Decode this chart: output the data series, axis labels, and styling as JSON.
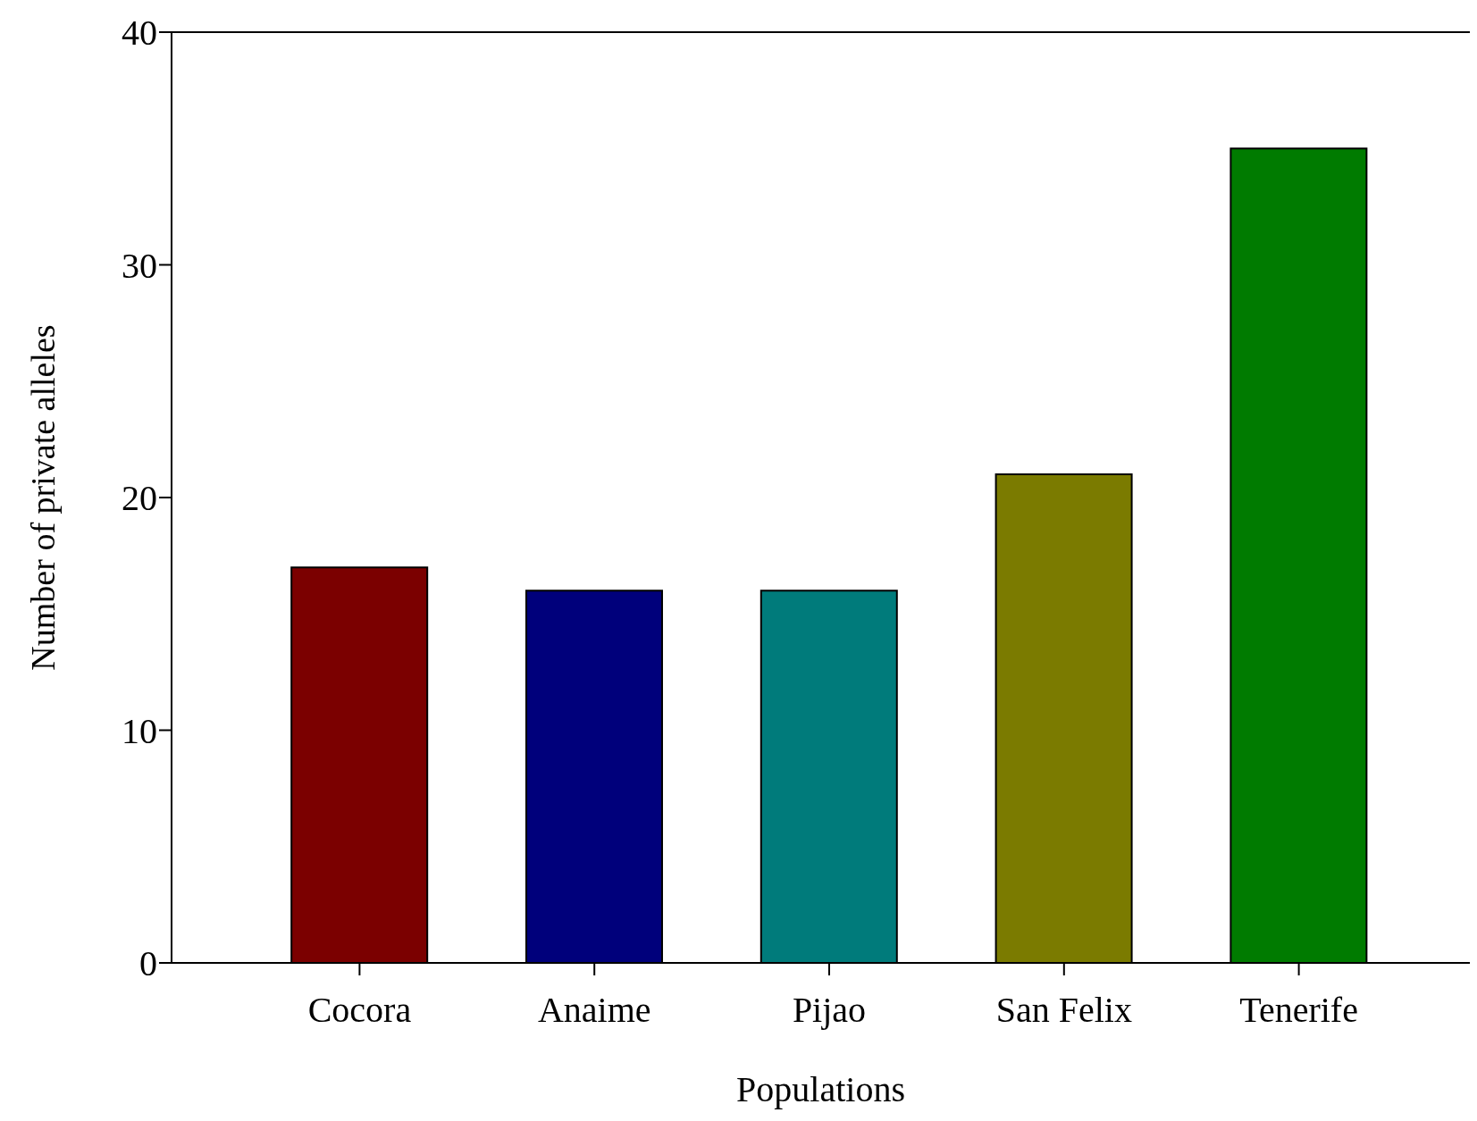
{
  "chart_data": {
    "type": "bar",
    "xlabel": "Populations",
    "ylabel": "Number of private alleles",
    "categories": [
      "Cocora",
      "Anaime",
      "Pijao",
      "San Felix",
      "Tenerife"
    ],
    "values": [
      17,
      16,
      16,
      21,
      35
    ],
    "colors": [
      "#7b0000",
      "#00007b",
      "#007b7b",
      "#7b7b00",
      "#007b00"
    ],
    "ylim": [
      0,
      40
    ],
    "yticks": [
      0,
      10,
      20,
      30,
      40
    ],
    "grid": false,
    "legend": false
  }
}
